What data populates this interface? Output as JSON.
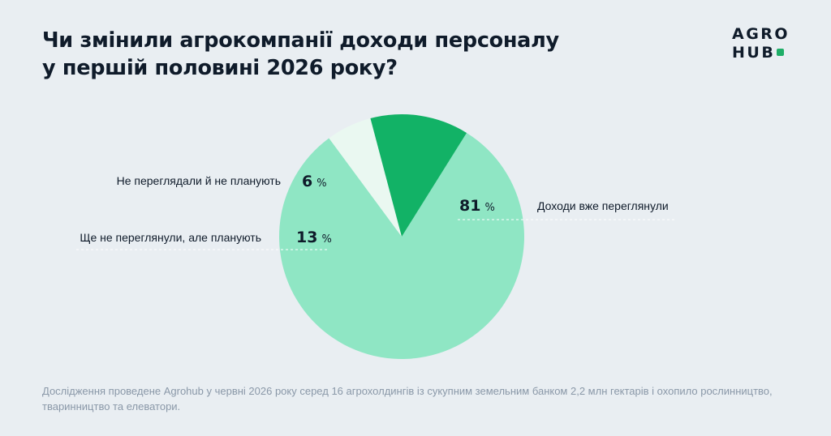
{
  "title": {
    "line1": "Чи змінили агрокомпанії доходи персоналу",
    "line2": "у першій половині 2026 року?"
  },
  "logo": {
    "line1": "AGRO",
    "line2": "HUB",
    "accent_color": "#1fae68"
  },
  "chart_data": {
    "type": "pie",
    "unit": "%",
    "slices": [
      {
        "label": "Доходи вже переглянули",
        "value": 81,
        "color": "#8fe6c4"
      },
      {
        "label": "Не переглядали й не планують",
        "value": 6,
        "color": "#eaf8f1"
      },
      {
        "label": "Ще не переглянули, але планують",
        "value": 13,
        "color": "#12b266"
      }
    ]
  },
  "footnote": "Дослідження проведене Agrohub у червні 2026 року серед 16 агрохолдингів із сукупним земельним банком 2,2 млн гектарів і охопило рослинництво, тваринництво та елеватори."
}
